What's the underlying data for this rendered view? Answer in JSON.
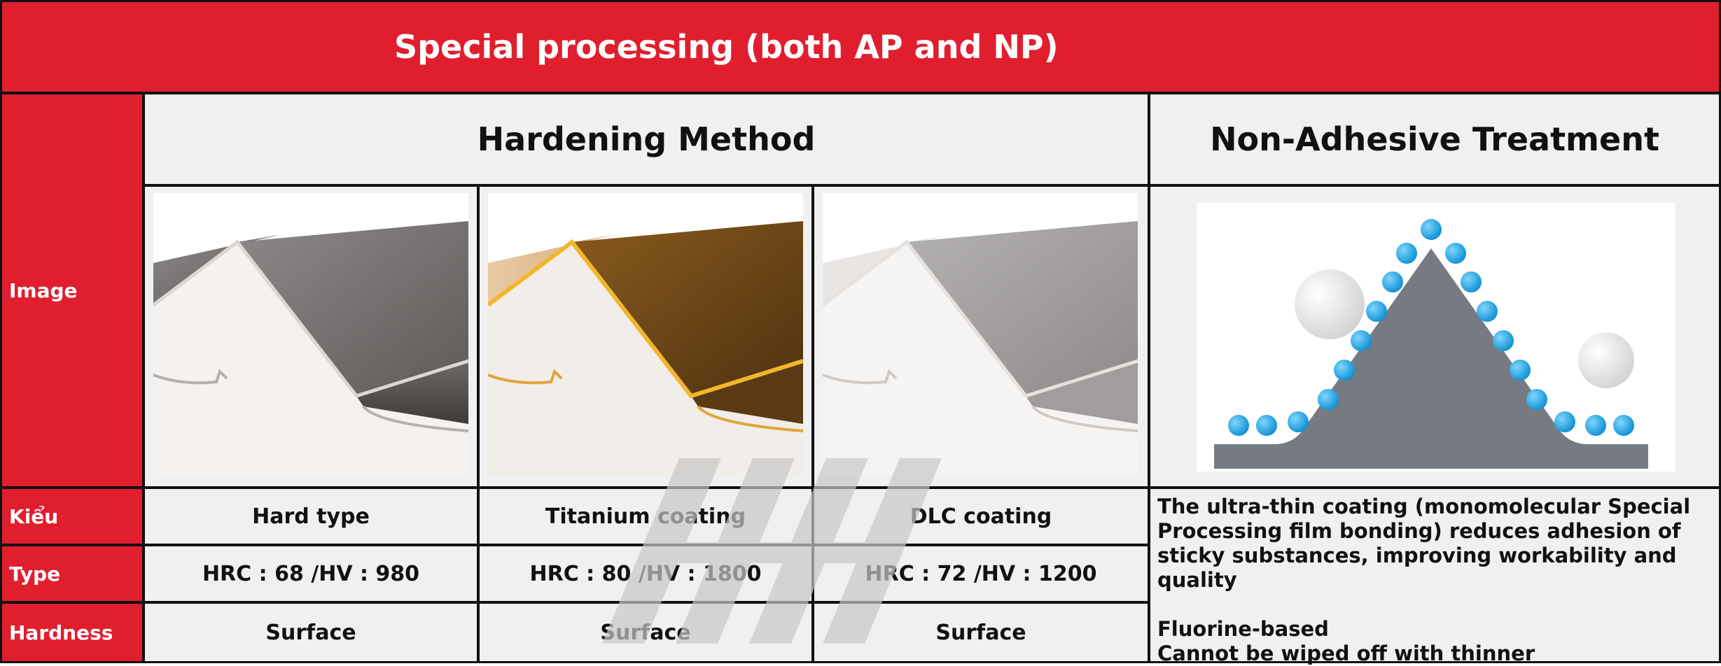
{
  "title": "Special processing (both AP and NP)",
  "row_labels": {
    "image": "Image",
    "kieu": "Kiểu",
    "type": "Type",
    "hardness": "Hardness"
  },
  "groups": {
    "hardening": "Hardening Method",
    "non_adhesive": "Non-Adhesive Treatment"
  },
  "columns": [
    {
      "kieu": "Hard type",
      "type": "HRC : 68 /HV : 980",
      "hardness": "Surface"
    },
    {
      "kieu": "Titanium coating",
      "type": "HRC : 80 /HV : 1800",
      "hardness": "Surface"
    },
    {
      "kieu": "DLC coating",
      "type": "HRC : 72 /HV : 1200",
      "hardness": "Surface"
    }
  ],
  "non_adhesive": {
    "description": "The ultra-thin coating (monomolecular Special Processing film bonding) reduces adhesion of sticky substances, improving workability and quality",
    "line1": "Fluorine-based",
    "line2": "Cannot be wiped off with thinner"
  },
  "colors": {
    "header_red": "#e01e2e",
    "cell_grey": "#f0f0f0",
    "bead_blue": "#1aa0e0",
    "border": "#111111"
  }
}
